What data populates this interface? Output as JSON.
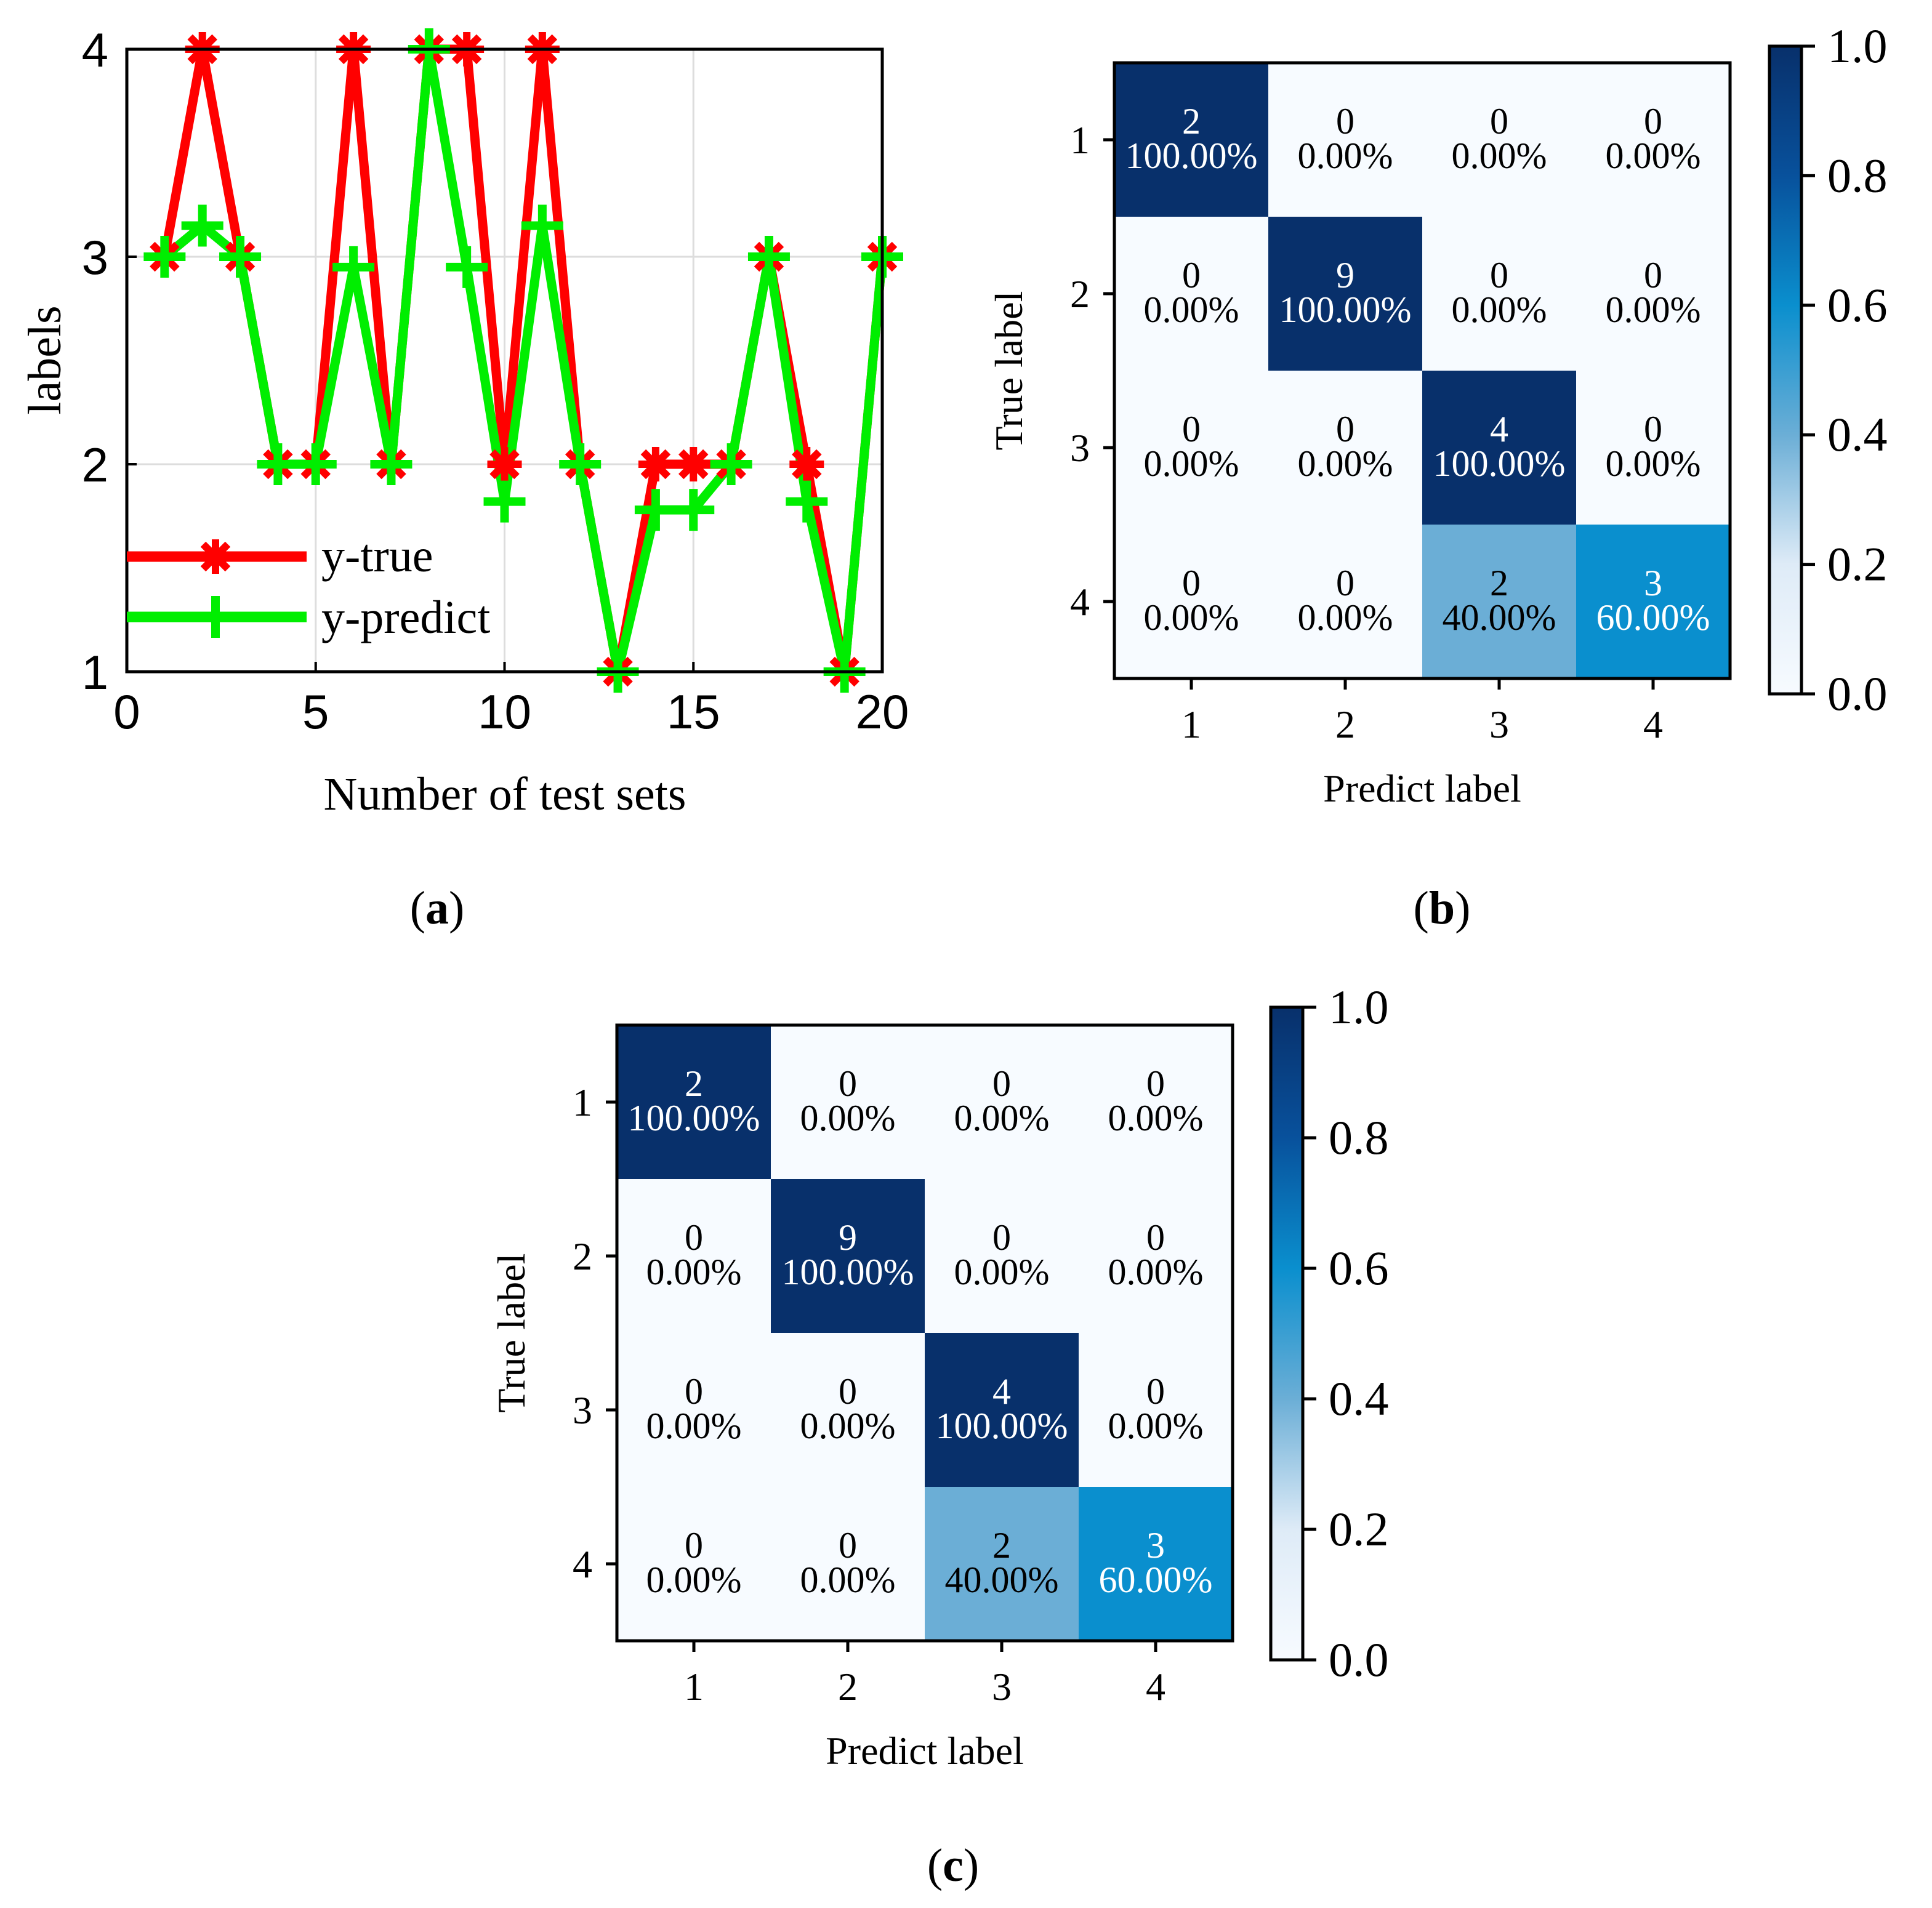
{
  "colors": {
    "true_line": "#ff0000",
    "predict_line": "#00ee00",
    "grid": "#dddddd",
    "cm_low": "#f7fbff",
    "cm_mid": "#6baed6",
    "cm_mid2": "#0a8fce",
    "cm_high": "#08306b"
  },
  "chart_data": [
    {
      "type": "line",
      "panel_label": "a",
      "title": "",
      "xlabel": "Number of test sets",
      "ylabel": "labels",
      "xlim": [
        0,
        20
      ],
      "ylim": [
        1,
        4
      ],
      "xticks": [
        "0",
        "5",
        "10",
        "15",
        "20"
      ],
      "yticks": [
        "1",
        "2",
        "3",
        "4"
      ],
      "grid": true,
      "legend": "lower-left",
      "x": [
        1,
        2,
        3,
        4,
        5,
        6,
        7,
        8,
        9,
        10,
        11,
        12,
        13,
        14,
        15,
        16,
        17,
        18,
        19,
        20
      ],
      "series": [
        {
          "name": "y-true",
          "marker": "asterisk",
          "values": [
            3,
            4,
            3,
            2,
            2,
            4,
            2,
            4,
            4,
            2,
            4,
            2,
            1,
            2,
            2,
            2,
            3,
            2,
            1,
            3
          ]
        },
        {
          "name": "y-predict",
          "marker": "plus",
          "values": [
            3,
            3.15,
            3,
            2,
            2,
            2.95,
            2,
            4,
            2.95,
            1.82,
            3.15,
            2,
            1,
            1.78,
            1.78,
            2,
            3,
            1.82,
            1,
            3
          ]
        }
      ]
    },
    {
      "type": "heatmap",
      "panel_label": "b",
      "xlabel": "Predict label",
      "ylabel": "True label",
      "x_categories": [
        "1",
        "2",
        "3",
        "4"
      ],
      "y_categories": [
        "1",
        "2",
        "3",
        "4"
      ],
      "counts": [
        [
          2,
          0,
          0,
          0
        ],
        [
          0,
          9,
          0,
          0
        ],
        [
          0,
          0,
          4,
          0
        ],
        [
          0,
          0,
          2,
          3
        ]
      ],
      "percent_labels": [
        [
          "100.00%",
          "0.00%",
          "0.00%",
          "0.00%"
        ],
        [
          "0.00%",
          "100.00%",
          "0.00%",
          "0.00%"
        ],
        [
          "0.00%",
          "0.00%",
          "100.00%",
          "0.00%"
        ],
        [
          "0.00%",
          "0.00%",
          "40.00%",
          "60.00%"
        ]
      ],
      "values": [
        [
          1,
          0,
          0,
          0
        ],
        [
          0,
          1,
          0,
          0
        ],
        [
          0,
          0,
          1,
          0
        ],
        [
          0,
          0,
          0.4,
          0.6
        ]
      ],
      "colorbar_range": [
        0,
        1
      ],
      "colorbar_ticks": [
        "0.0",
        "0.2",
        "0.4",
        "0.6",
        "0.8",
        "1.0"
      ]
    },
    {
      "type": "heatmap",
      "panel_label": "c",
      "xlabel": "Predict label",
      "ylabel": "True label",
      "x_categories": [
        "1",
        "2",
        "3",
        "4"
      ],
      "y_categories": [
        "1",
        "2",
        "3",
        "4"
      ],
      "counts": [
        [
          2,
          0,
          0,
          0
        ],
        [
          0,
          9,
          0,
          0
        ],
        [
          0,
          0,
          4,
          0
        ],
        [
          0,
          0,
          2,
          3
        ]
      ],
      "percent_labels": [
        [
          "100.00%",
          "0.00%",
          "0.00%",
          "0.00%"
        ],
        [
          "0.00%",
          "100.00%",
          "0.00%",
          "0.00%"
        ],
        [
          "0.00%",
          "0.00%",
          "100.00%",
          "0.00%"
        ],
        [
          "0.00%",
          "0.00%",
          "40.00%",
          "60.00%"
        ]
      ],
      "values": [
        [
          1,
          0,
          0,
          0
        ],
        [
          0,
          1,
          0,
          0
        ],
        [
          0,
          0,
          1,
          0
        ],
        [
          0,
          0,
          0.4,
          0.6
        ]
      ],
      "colorbar_range": [
        0,
        1
      ],
      "colorbar_ticks": [
        "0.0",
        "0.2",
        "0.4",
        "0.6",
        "0.8",
        "1.0"
      ]
    }
  ],
  "captions": {
    "a": "a",
    "b": "b",
    "c": "c"
  }
}
